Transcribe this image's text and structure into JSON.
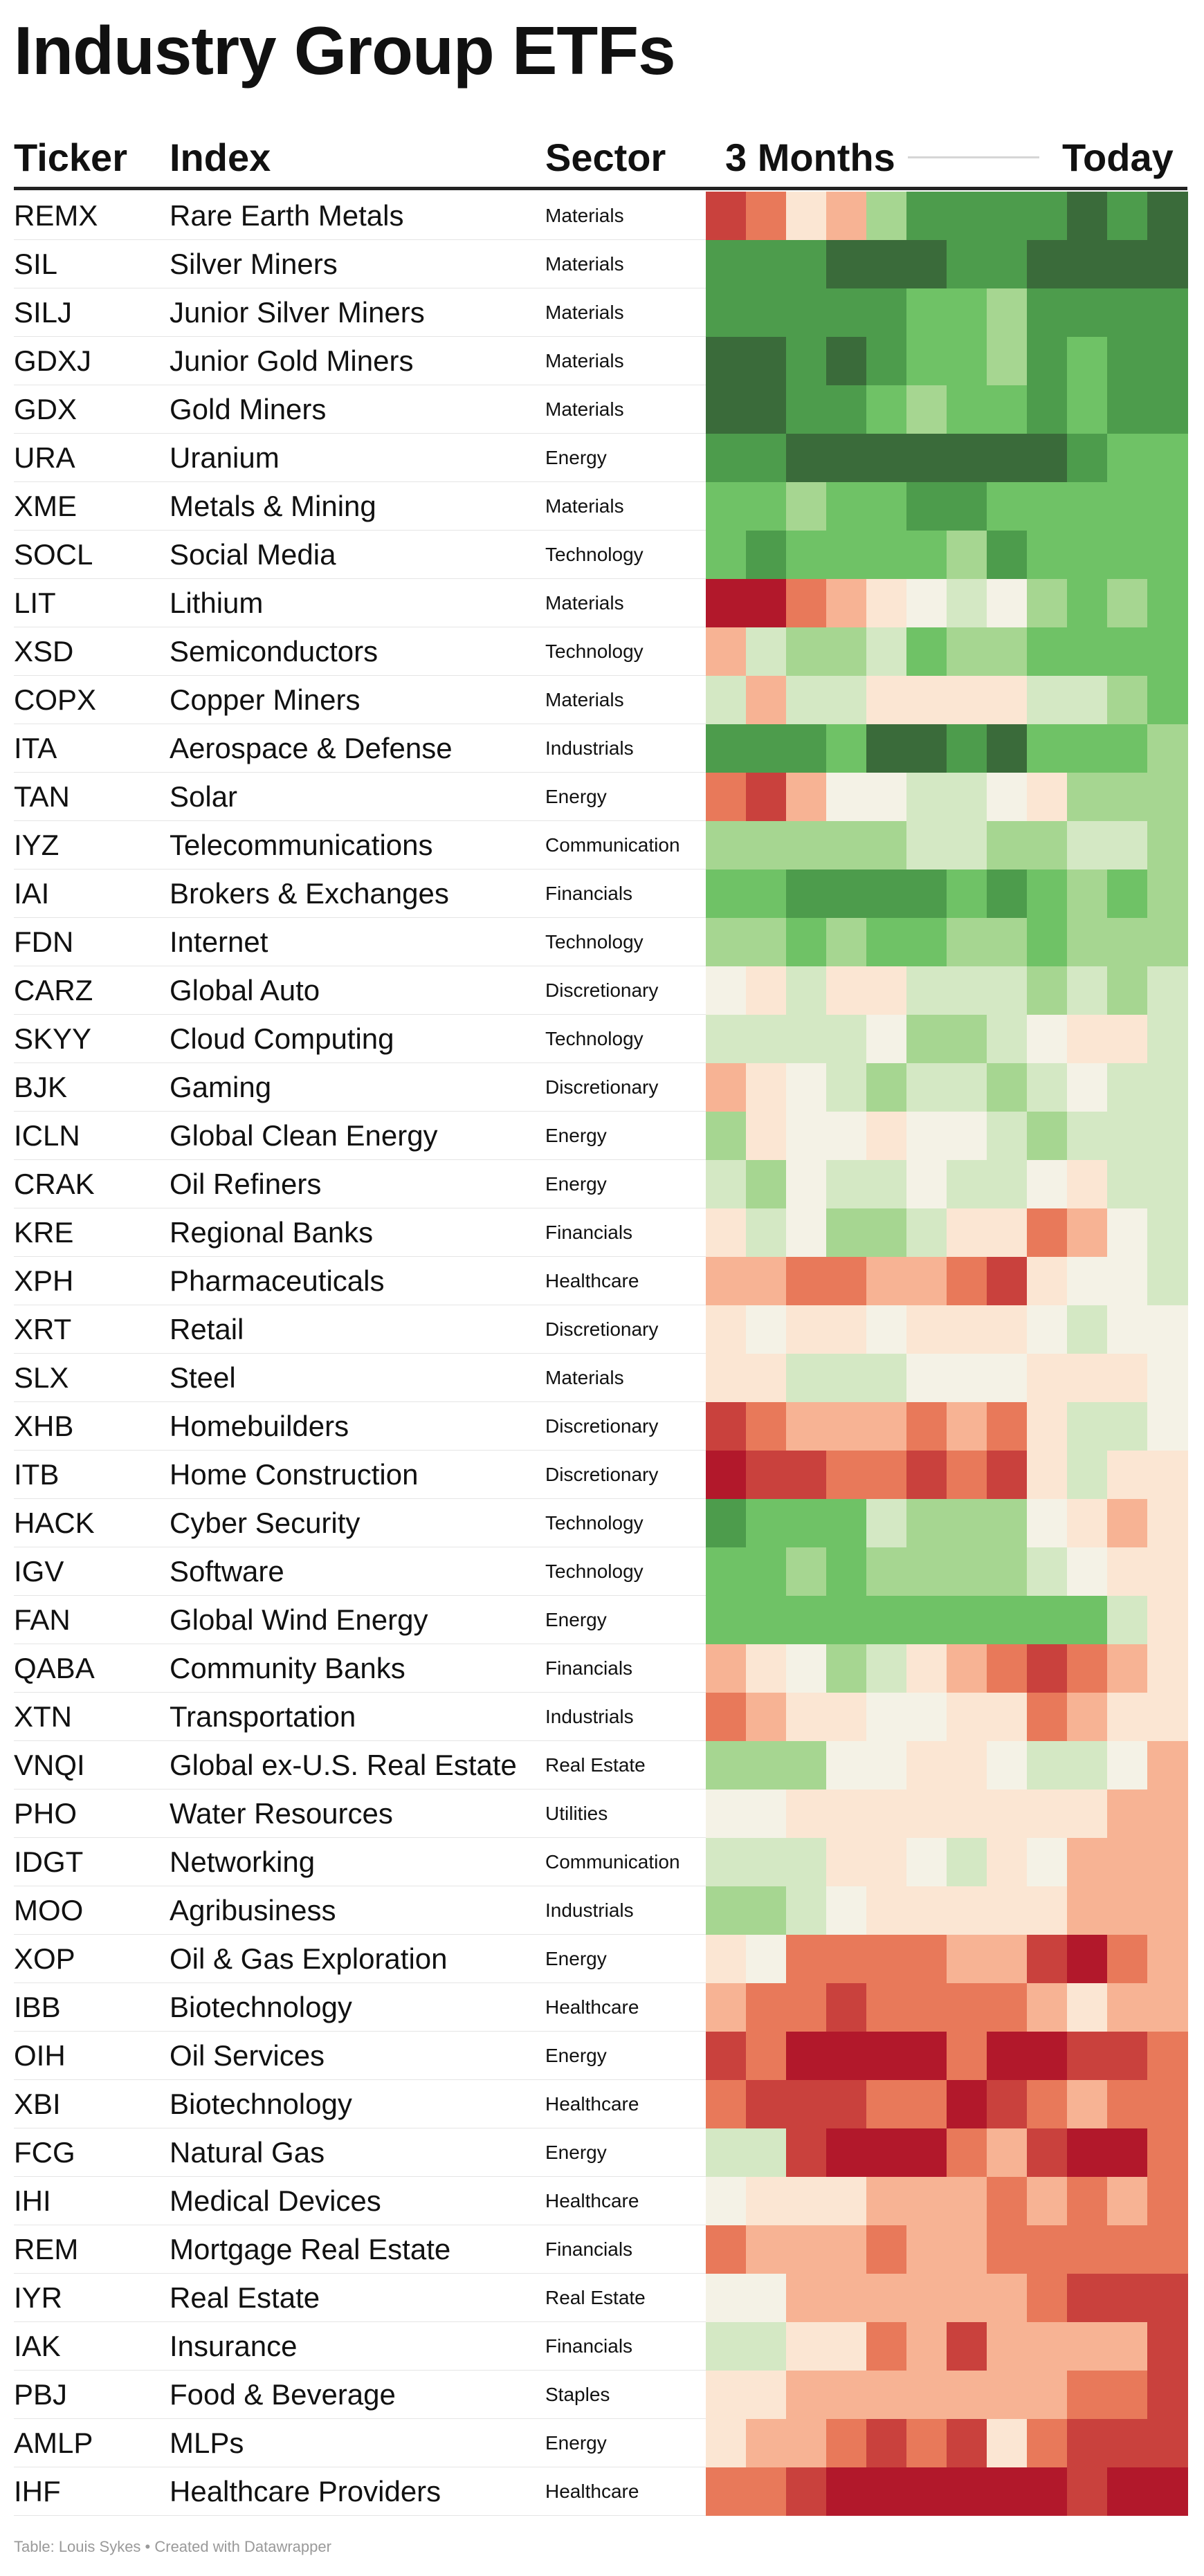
{
  "page": {
    "title": "Industry Group ETFs"
  },
  "table": {
    "columns": {
      "ticker": "Ticker",
      "index": "Index",
      "sector": "Sector",
      "start": "3 Months",
      "end": "Today"
    },
    "rows": [
      {
        "ticker": "REMX",
        "index": "Rare Earth Metals",
        "sector": "Materials"
      },
      {
        "ticker": "SIL",
        "index": "Silver Miners",
        "sector": "Materials"
      },
      {
        "ticker": "SILJ",
        "index": "Junior Silver Miners",
        "sector": "Materials"
      },
      {
        "ticker": "GDXJ",
        "index": "Junior Gold Miners",
        "sector": "Materials"
      },
      {
        "ticker": "GDX",
        "index": "Gold Miners",
        "sector": "Materials"
      },
      {
        "ticker": "URA",
        "index": "Uranium",
        "sector": "Energy"
      },
      {
        "ticker": "XME",
        "index": "Metals & Mining",
        "sector": "Materials"
      },
      {
        "ticker": "SOCL",
        "index": "Social Media",
        "sector": "Technology"
      },
      {
        "ticker": "LIT",
        "index": "Lithium",
        "sector": "Materials"
      },
      {
        "ticker": "XSD",
        "index": "Semiconductors",
        "sector": "Technology"
      },
      {
        "ticker": "COPX",
        "index": "Copper Miners",
        "sector": "Materials"
      },
      {
        "ticker": "ITA",
        "index": "Aerospace & Defense",
        "sector": "Industrials"
      },
      {
        "ticker": "TAN",
        "index": "Solar",
        "sector": "Energy"
      },
      {
        "ticker": "IYZ",
        "index": "Telecommunications",
        "sector": "Communication"
      },
      {
        "ticker": "IAI",
        "index": "Brokers & Exchanges",
        "sector": "Financials"
      },
      {
        "ticker": "FDN",
        "index": "Internet",
        "sector": "Technology"
      },
      {
        "ticker": "CARZ",
        "index": "Global Auto",
        "sector": "Discretionary"
      },
      {
        "ticker": "SKYY",
        "index": "Cloud Computing",
        "sector": "Technology"
      },
      {
        "ticker": "BJK",
        "index": "Gaming",
        "sector": "Discretionary"
      },
      {
        "ticker": "ICLN",
        "index": "Global Clean Energy",
        "sector": "Energy"
      },
      {
        "ticker": "CRAK",
        "index": "Oil Refiners",
        "sector": "Energy"
      },
      {
        "ticker": "KRE",
        "index": "Regional Banks",
        "sector": "Financials"
      },
      {
        "ticker": "XPH",
        "index": "Pharmaceuticals",
        "sector": "Healthcare"
      },
      {
        "ticker": "XRT",
        "index": "Retail",
        "sector": "Discretionary"
      },
      {
        "ticker": "SLX",
        "index": "Steel",
        "sector": "Materials"
      },
      {
        "ticker": "XHB",
        "index": "Homebuilders",
        "sector": "Discretionary"
      },
      {
        "ticker": "ITB",
        "index": "Home Construction",
        "sector": "Discretionary"
      },
      {
        "ticker": "HACK",
        "index": "Cyber Security",
        "sector": "Technology"
      },
      {
        "ticker": "IGV",
        "index": "Software",
        "sector": "Technology"
      },
      {
        "ticker": "FAN",
        "index": "Global Wind Energy",
        "sector": "Energy"
      },
      {
        "ticker": "QABA",
        "index": "Community Banks",
        "sector": "Financials"
      },
      {
        "ticker": "XTN",
        "index": "Transportation",
        "sector": "Industrials"
      },
      {
        "ticker": "VNQI",
        "index": "Global ex-U.S. Real Estate",
        "sector": "Real Estate"
      },
      {
        "ticker": "PHO",
        "index": "Water Resources",
        "sector": "Utilities"
      },
      {
        "ticker": "IDGT",
        "index": "Networking",
        "sector": "Communication"
      },
      {
        "ticker": "MOO",
        "index": "Agribusiness",
        "sector": "Industrials"
      },
      {
        "ticker": "XOP",
        "index": "Oil & Gas Exploration",
        "sector": "Energy"
      },
      {
        "ticker": "IBB",
        "index": "Biotechnology",
        "sector": "Healthcare"
      },
      {
        "ticker": "OIH",
        "index": "Oil Services",
        "sector": "Energy"
      },
      {
        "ticker": "XBI",
        "index": "Biotechnology",
        "sector": "Healthcare"
      },
      {
        "ticker": "FCG",
        "index": "Natural Gas",
        "sector": "Energy"
      },
      {
        "ticker": "IHI",
        "index": "Medical Devices",
        "sector": "Healthcare"
      },
      {
        "ticker": "REM",
        "index": "Mortgage Real Estate",
        "sector": "Financials"
      },
      {
        "ticker": "IYR",
        "index": "Real Estate",
        "sector": "Real Estate"
      },
      {
        "ticker": "IAK",
        "index": "Insurance",
        "sector": "Financials"
      },
      {
        "ticker": "PBJ",
        "index": "Food & Beverage",
        "sector": "Staples"
      },
      {
        "ticker": "AMLP",
        "index": "MLPs",
        "sector": "Energy"
      },
      {
        "ticker": "IHF",
        "index": "Healthcare Providers",
        "sector": "Healthcare"
      }
    ]
  },
  "chart_data": {
    "type": "heatmap",
    "columns_label_start": "3 Months",
    "columns_label_end": "Today",
    "scale": "diverging: red (weak) to green (strong), values in -4..4 (estimated)",
    "colors": {
      "-4": "#b2182b",
      "-3": "#c9413d",
      "-2": "#e8795a",
      "-1": "#f7b394",
      "0": "#fbe6d3",
      "0.5": "#f4f2e6",
      "1": "#d4e8c4",
      "2": "#a6d691",
      "3": "#6fc266",
      "4": "#4d9c4c",
      "5": "#3a6b3a"
    },
    "rows": [
      [
        -3,
        -2,
        0,
        -1,
        2,
        4,
        4,
        4,
        4,
        5,
        4,
        5
      ],
      [
        4,
        4,
        4,
        5,
        5,
        5,
        4,
        4,
        5,
        5,
        5,
        5
      ],
      [
        4,
        4,
        4,
        4,
        4,
        3,
        3,
        2,
        4,
        4,
        4,
        4
      ],
      [
        5,
        5,
        4,
        5,
        4,
        3,
        3,
        2,
        4,
        3,
        4,
        4
      ],
      [
        5,
        5,
        4,
        4,
        3,
        2,
        3,
        3,
        4,
        3,
        4,
        4
      ],
      [
        4,
        4,
        5,
        5,
        5,
        5,
        5,
        5,
        5,
        4,
        3,
        3
      ],
      [
        3,
        3,
        2,
        3,
        3,
        4,
        4,
        3,
        3,
        3,
        3,
        3
      ],
      [
        3,
        4,
        3,
        3,
        3,
        3,
        2,
        4,
        3,
        3,
        3,
        3
      ],
      [
        -4,
        -4,
        -2,
        -1,
        0,
        0.5,
        1,
        0.5,
        2,
        3,
        2,
        3
      ],
      [
        -1,
        1,
        2,
        2,
        1,
        3,
        2,
        2,
        3,
        3,
        3,
        3
      ],
      [
        1,
        -1,
        1,
        1,
        0,
        0,
        0,
        0,
        1,
        1,
        2,
        3
      ],
      [
        4,
        4,
        4,
        3,
        5,
        5,
        4,
        5,
        3,
        3,
        3,
        2
      ],
      [
        -2,
        -3,
        -1,
        0.5,
        0.5,
        1,
        1,
        0.5,
        0,
        2,
        2,
        2
      ],
      [
        2,
        2,
        2,
        2,
        2,
        1,
        1,
        2,
        2,
        1,
        1,
        2
      ],
      [
        3,
        3,
        4,
        4,
        4,
        4,
        3,
        4,
        3,
        2,
        3,
        2
      ],
      [
        2,
        2,
        3,
        2,
        3,
        3,
        2,
        2,
        3,
        2,
        2,
        2
      ],
      [
        0.5,
        0,
        1,
        0,
        0,
        1,
        1,
        1,
        2,
        1,
        2,
        1
      ],
      [
        1,
        1,
        1,
        1,
        0.5,
        2,
        2,
        1,
        0.5,
        0,
        0,
        1
      ],
      [
        -1,
        0,
        0.5,
        1,
        2,
        1,
        1,
        2,
        1,
        0.5,
        1,
        1
      ],
      [
        2,
        0,
        0.5,
        0.5,
        0,
        0.5,
        0.5,
        1,
        2,
        1,
        1,
        1
      ],
      [
        1,
        2,
        0.5,
        1,
        1,
        0.5,
        1,
        1,
        0.5,
        0,
        1,
        1
      ],
      [
        0,
        1,
        0.5,
        2,
        2,
        1,
        0,
        0,
        -2,
        -1,
        0.5,
        1
      ],
      [
        -1,
        -1,
        -2,
        -2,
        -1,
        -1,
        -2,
        -3,
        0,
        0.5,
        0.5,
        1
      ],
      [
        0,
        0.5,
        0,
        0,
        0.5,
        0,
        0,
        0,
        0.5,
        1,
        0.5,
        0.5
      ],
      [
        0,
        0,
        1,
        1,
        1,
        0.5,
        0.5,
        0.5,
        0,
        0,
        0,
        0.5
      ],
      [
        -3,
        -2,
        -1,
        -1,
        -1,
        -2,
        -1,
        -2,
        0,
        1,
        1,
        0.5
      ],
      [
        -4,
        -3,
        -3,
        -2,
        -2,
        -3,
        -2,
        -3,
        0,
        1,
        0,
        0
      ],
      [
        4,
        3,
        3,
        3,
        1,
        2,
        2,
        2,
        0.5,
        0,
        -1,
        0
      ],
      [
        3,
        3,
        2,
        3,
        2,
        2,
        2,
        2,
        1,
        0.5,
        0,
        0
      ],
      [
        3,
        3,
        3,
        3,
        3,
        3,
        3,
        3,
        3,
        3,
        1,
        0
      ],
      [
        -1,
        0,
        0.5,
        2,
        1,
        0,
        -1,
        -2,
        -3,
        -2,
        -1,
        0
      ],
      [
        -2,
        -1,
        0,
        0,
        0.5,
        0.5,
        0,
        0,
        -2,
        -1,
        0,
        0
      ],
      [
        2,
        2,
        2,
        0.5,
        0.5,
        0,
        0,
        0.5,
        1,
        1,
        0.5,
        -1
      ],
      [
        0.5,
        0.5,
        0,
        0,
        0,
        0,
        0,
        0,
        0,
        0,
        -1,
        -1
      ],
      [
        1,
        1,
        1,
        0,
        0,
        0.5,
        1,
        0,
        0.5,
        -1,
        -1,
        -1
      ],
      [
        2,
        2,
        1,
        0.5,
        0,
        0,
        0,
        0,
        0,
        -1,
        -1,
        -1
      ],
      [
        0,
        0.5,
        -2,
        -2,
        -2,
        -2,
        -1,
        -1,
        -3,
        -4,
        -2,
        -1
      ],
      [
        -1,
        -2,
        -2,
        -3,
        -2,
        -2,
        -2,
        -2,
        -1,
        0,
        -1,
        -1
      ],
      [
        -3,
        -2,
        -4,
        -4,
        -4,
        -4,
        -2,
        -4,
        -4,
        -3,
        -3,
        -2
      ],
      [
        -2,
        -3,
        -3,
        -3,
        -2,
        -2,
        -4,
        -3,
        -2,
        -1,
        -2,
        -2
      ],
      [
        1,
        1,
        -3,
        -4,
        -4,
        -4,
        -2,
        -1,
        -3,
        -4,
        -4,
        -2
      ],
      [
        0.5,
        0,
        0,
        0,
        -1,
        -1,
        -1,
        -2,
        -1,
        -2,
        -1,
        -2
      ],
      [
        -2,
        -1,
        -1,
        -1,
        -2,
        -1,
        -1,
        -2,
        -2,
        -2,
        -2,
        -2
      ],
      [
        0.5,
        0.5,
        -1,
        -1,
        -1,
        -1,
        -1,
        -1,
        -2,
        -3,
        -3,
        -3
      ],
      [
        1,
        1,
        0,
        0,
        -2,
        -1,
        -3,
        -1,
        -1,
        -1,
        -1,
        -3
      ],
      [
        0,
        0,
        -1,
        -1,
        -1,
        -1,
        -1,
        -1,
        -1,
        -2,
        -2,
        -3
      ],
      [
        0,
        -1,
        -1,
        -2,
        -3,
        -2,
        -3,
        0,
        -2,
        -3,
        -3,
        -3
      ],
      [
        -2,
        -2,
        -3,
        -4,
        -4,
        -4,
        -4,
        -4,
        -4,
        -3,
        -4,
        -4
      ]
    ]
  },
  "footer": {
    "source": "Table: Louis Sykes • Created with Datawrapper"
  }
}
